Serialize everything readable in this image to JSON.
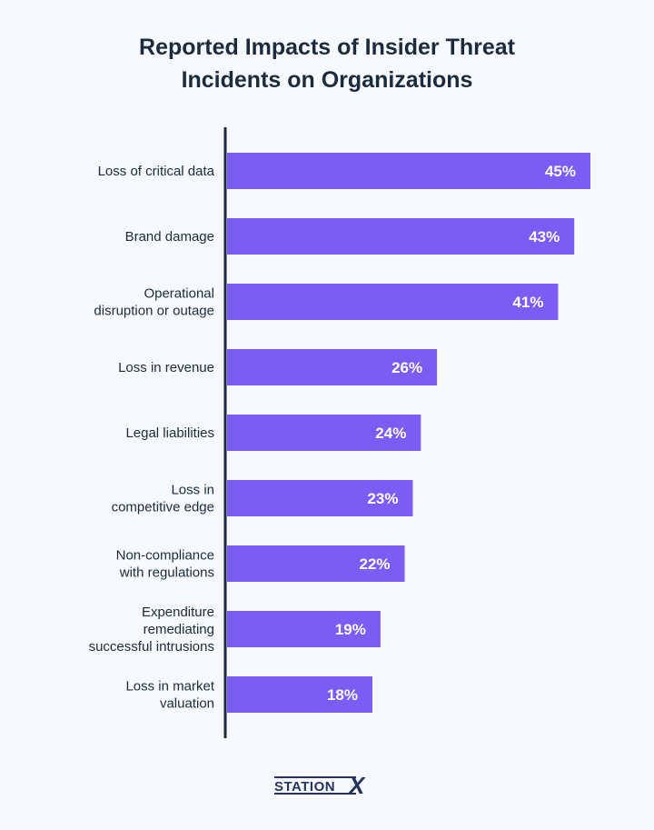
{
  "chart_data": {
    "type": "bar",
    "orientation": "horizontal",
    "title": "Reported Impacts of Insider Threat Incidents on Organizations",
    "title_lines": [
      "Reported Impacts of Insider Threat",
      "Incidents on Organizations"
    ],
    "categories": [
      [
        "Loss of critical data"
      ],
      [
        "Brand damage"
      ],
      [
        "Operational",
        "disruption or outage"
      ],
      [
        "Loss in revenue"
      ],
      [
        "Legal liabilities"
      ],
      [
        "Loss in",
        "competitive edge"
      ],
      [
        "Non-compliance",
        "with regulations"
      ],
      [
        "Expenditure",
        "remediating",
        "successful intrusions"
      ],
      [
        "Loss in market",
        "valuation"
      ]
    ],
    "values": [
      45,
      43,
      41,
      26,
      24,
      23,
      22,
      19,
      18
    ],
    "value_labels": [
      "45%",
      "43%",
      "41%",
      "26%",
      "24%",
      "23%",
      "22%",
      "19%",
      "18%"
    ],
    "unit": "%",
    "xlim": [
      0,
      46
    ],
    "bar_color": "#7b5cf5",
    "axis_color": "#1c2b3b",
    "grid": false
  },
  "brand": {
    "logo_text": "STATIONX",
    "color": "#26335f"
  }
}
